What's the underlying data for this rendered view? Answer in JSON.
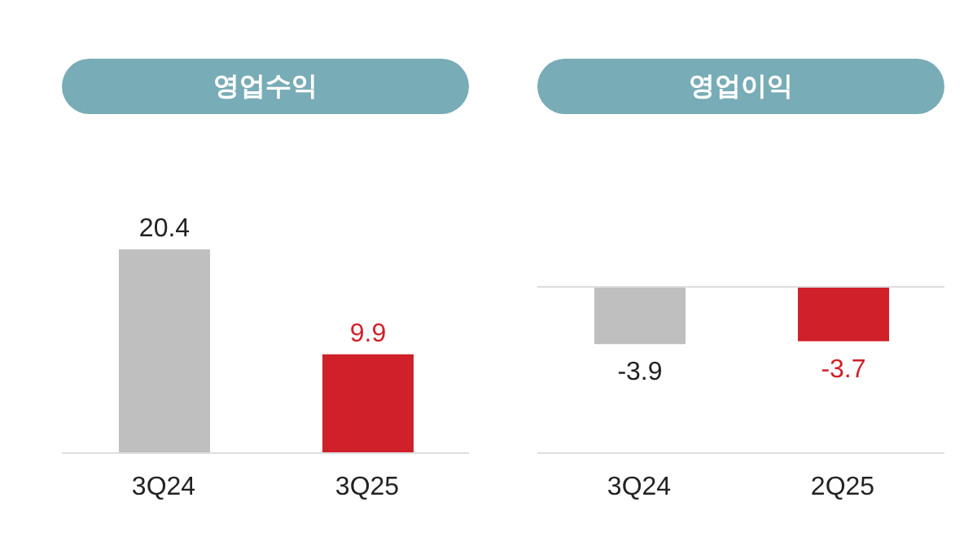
{
  "chart_data": [
    {
      "type": "bar",
      "title": "영업수익",
      "categories": [
        "3Q24",
        "3Q25"
      ],
      "values": [
        20.4,
        9.9
      ],
      "colors": [
        "#bfbfbf",
        "#d0202a"
      ],
      "data_labels": true
    },
    {
      "type": "bar",
      "title": "영업이익",
      "categories": [
        "3Q24",
        "2Q25"
      ],
      "values": [
        -3.9,
        -3.7
      ],
      "colors": [
        "#bfbfbf",
        "#d0202a"
      ],
      "data_labels": true
    }
  ]
}
